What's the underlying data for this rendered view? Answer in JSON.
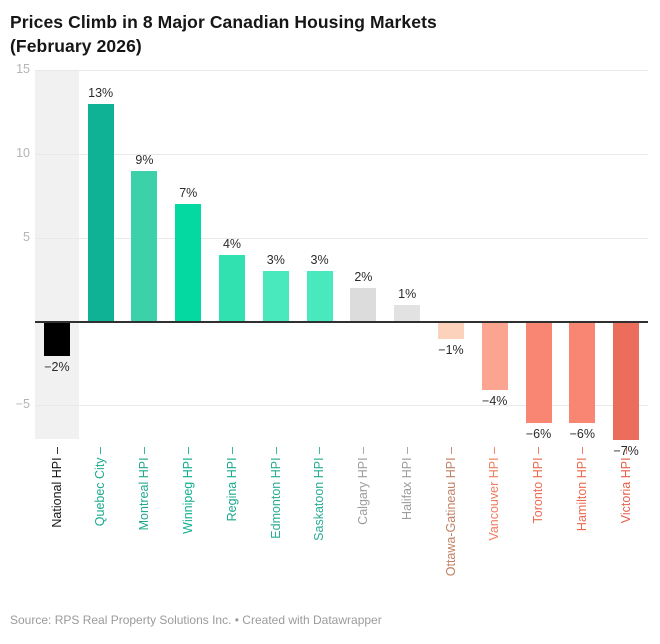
{
  "title": {
    "line1": "Prices Climb in 8 Major Canadian Housing Markets",
    "line2": "(February 2026)"
  },
  "chart_data": {
    "type": "bar",
    "title": "Prices Climb in 8 Major Canadian Housing Markets (February 2026)",
    "categories": [
      "National HPI",
      "Quebec City",
      "Montreal HPI",
      "Winnipeg HPI",
      "Regina HPI",
      "Edmonton HPI",
      "Saskatoon HPI",
      "Calgary HPI",
      "Halifax HPI",
      "Ottawa-Gatineau HPI",
      "Vancouver HPI",
      "Toronto HPI",
      "Hamilton HPI",
      "Victoria HPI"
    ],
    "values": [
      -2,
      13,
      9,
      7,
      4,
      3,
      3,
      2,
      1,
      -1,
      -4,
      -6,
      -6,
      -7
    ],
    "value_labels": [
      "−2%",
      "13%",
      "9%",
      "7%",
      "4%",
      "3%",
      "3%",
      "2%",
      "1%",
      "−1%",
      "−4%",
      "−6%",
      "−6%",
      "−7%"
    ],
    "unit": "%",
    "bar_colors": [
      "#000000",
      "#10b295",
      "#3dd1a9",
      "#04d9a1",
      "#31e2b0",
      "#4ae9bd",
      "#4ae9bd",
      "#dcdcdc",
      "#e2e2e2",
      "#fcd2bd",
      "#fba591",
      "#f98672",
      "#f98672",
      "#ea6e5b"
    ],
    "axis_label_colors": [
      "#141414",
      "#1cab90",
      "#23a88d",
      "#0fae8d",
      "#1bab90",
      "#27ad93",
      "#27ad93",
      "#9d9d9d",
      "#9d9d9d",
      "#c08166",
      "#ef7c5f",
      "#ec6950",
      "#ec6950",
      "#e55f4b"
    ],
    "tick_suffix": " –",
    "y_ticks": {
      "values": [
        15,
        10,
        5,
        -5
      ],
      "labels": [
        "15",
        "10",
        "5",
        "−5"
      ]
    },
    "ylim": [
      -7.5,
      15
    ],
    "grid": true,
    "legend_position": "none",
    "highlight_band_index": 0
  },
  "footer": {
    "text": "Source: RPS Real Property Solutions Inc. • Created with Datawrapper"
  },
  "colors": {
    "band": "#f1f1f1",
    "gridline": "#e9e9e9",
    "zero_line": "#303030",
    "value_label": "#2b2b2b",
    "y_tick_label": "#b4b4b4",
    "title_text": "#161616",
    "footer_text": "#9b9b9b"
  }
}
